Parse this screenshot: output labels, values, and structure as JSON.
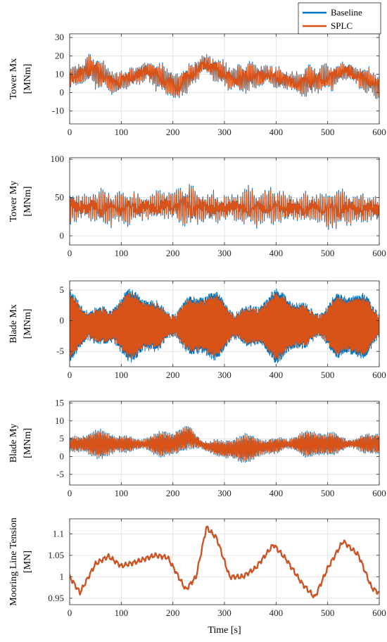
{
  "chart_data": [
    {
      "type": "line",
      "ylabel_lines": [
        "Tower Mx",
        "[MNm]"
      ],
      "xlabel": "",
      "xlim": [
        0,
        600
      ],
      "ylim": [
        -17,
        32
      ],
      "yticks": [
        -10,
        0,
        10,
        20,
        30
      ],
      "ytick_labels": [
        "-10",
        "0",
        "10",
        "20",
        "30"
      ],
      "xticks": [
        0,
        100,
        200,
        300,
        400,
        500,
        600
      ],
      "xtick_labels": [
        "0",
        "100",
        "200",
        "300",
        "400",
        "500",
        "600"
      ],
      "grid": true,
      "legend": {
        "placement": "top-right",
        "entries": [
          "Baseline",
          "SPLC"
        ]
      },
      "signal": {
        "kind": "oscillating",
        "amp": 7,
        "freq": 0.35,
        "seed": 3,
        "trend": [
          [
            0,
            8
          ],
          [
            40,
            13
          ],
          [
            90,
            5
          ],
          [
            150,
            12
          ],
          [
            210,
            3
          ],
          [
            260,
            16
          ],
          [
            320,
            7
          ],
          [
            380,
            10
          ],
          [
            440,
            5
          ],
          [
            500,
            8
          ],
          [
            540,
            12
          ],
          [
            600,
            3
          ]
        ]
      },
      "series": [
        {
          "name": "Baseline",
          "color": "#0072BD",
          "scale": 1.12
        },
        {
          "name": "SPLC",
          "color": "#D95319",
          "scale": 1.0
        }
      ]
    },
    {
      "type": "line",
      "ylabel_lines": [
        "Tower My",
        "[MNm]"
      ],
      "xlabel": "",
      "xlim": [
        0,
        600
      ],
      "ylim": [
        -12,
        102
      ],
      "yticks": [
        0,
        50,
        100
      ],
      "ytick_labels": [
        "0",
        "50",
        "100"
      ],
      "xticks": [
        0,
        100,
        200,
        300,
        400,
        500,
        600
      ],
      "xtick_labels": [
        "0",
        "100",
        "200",
        "300",
        "400",
        "500",
        "600"
      ],
      "grid": true,
      "signal": {
        "kind": "oscillating",
        "amp": 22,
        "freq": 0.28,
        "seed": 7,
        "trend": [
          [
            0,
            38
          ],
          [
            100,
            36
          ],
          [
            200,
            40
          ],
          [
            300,
            36
          ],
          [
            400,
            38
          ],
          [
            500,
            35
          ],
          [
            600,
            36
          ]
        ]
      },
      "series": [
        {
          "name": "Baseline",
          "color": "#0072BD",
          "scale": 1.12
        },
        {
          "name": "SPLC",
          "color": "#D95319",
          "scale": 1.0
        }
      ]
    },
    {
      "type": "line",
      "ylabel_lines": [
        "Blade Mx",
        "[MNm]"
      ],
      "xlabel": "",
      "xlim": [
        0,
        600
      ],
      "ylim": [
        -7.5,
        6.5
      ],
      "yticks": [
        -5,
        0,
        5
      ],
      "ytick_labels": [
        "-5",
        "0",
        "5"
      ],
      "xticks": [
        0,
        100,
        200,
        300,
        400,
        500,
        600
      ],
      "xtick_labels": [
        "0",
        "100",
        "200",
        "300",
        "400",
        "500",
        "600"
      ],
      "grid": true,
      "signal": {
        "kind": "dense",
        "amp": 4.3,
        "freq": 1.25,
        "seed": 11,
        "trend": [
          [
            0,
            -0.8
          ],
          [
            300,
            -0.8
          ],
          [
            600,
            -0.8
          ]
        ]
      },
      "series": [
        {
          "name": "Baseline",
          "color": "#0072BD",
          "scale": 1.12
        },
        {
          "name": "SPLC",
          "color": "#D95319",
          "scale": 1.0
        }
      ]
    },
    {
      "type": "line",
      "ylabel_lines": [
        "Blade My",
        "[MNm]"
      ],
      "xlabel": "",
      "xlim": [
        0,
        600
      ],
      "ylim": [
        -8,
        15.5
      ],
      "yticks": [
        -5,
        0,
        5,
        10,
        15
      ],
      "ytick_labels": [
        "-5",
        "0",
        "5",
        "10",
        "15"
      ],
      "xticks": [
        0,
        100,
        200,
        300,
        400,
        500,
        600
      ],
      "xtick_labels": [
        "0",
        "100",
        "200",
        "300",
        "400",
        "500",
        "600"
      ],
      "grid": true,
      "signal": {
        "kind": "dense",
        "amp": 3.0,
        "freq": 1.1,
        "seed": 19,
        "trend": [
          [
            0,
            3.5
          ],
          [
            200,
            3.5
          ],
          [
            230,
            5.5
          ],
          [
            260,
            3
          ],
          [
            300,
            2
          ],
          [
            370,
            2.5
          ],
          [
            420,
            3.5
          ],
          [
            600,
            3.5
          ]
        ]
      },
      "series": [
        {
          "name": "Baseline",
          "color": "#0072BD",
          "scale": 1.12
        },
        {
          "name": "SPLC",
          "color": "#D95319",
          "scale": 1.0
        }
      ]
    },
    {
      "type": "line",
      "ylabel_lines": [
        "Mooring Line Tension",
        "[MN]"
      ],
      "xlabel": "Time [s]",
      "xlim": [
        0,
        600
      ],
      "ylim": [
        0.935,
        1.135
      ],
      "yticks": [
        0.95,
        1,
        1.05,
        1.1
      ],
      "ytick_labels": [
        "0.95",
        "1",
        "1.05",
        "1.1"
      ],
      "xticks": [
        0,
        100,
        200,
        300,
        400,
        500,
        600
      ],
      "xtick_labels": [
        "0",
        "100",
        "200",
        "300",
        "400",
        "500",
        "600"
      ],
      "grid": true,
      "signal": {
        "kind": "smooth",
        "amp": 0.006,
        "freq": 0.12,
        "seed": 23,
        "trend": [
          [
            0,
            1.0
          ],
          [
            20,
            0.963
          ],
          [
            50,
            1.03
          ],
          [
            75,
            1.048
          ],
          [
            100,
            1.025
          ],
          [
            130,
            1.035
          ],
          [
            165,
            1.05
          ],
          [
            190,
            1.045
          ],
          [
            225,
            0.97
          ],
          [
            245,
            1.0
          ],
          [
            265,
            1.115
          ],
          [
            285,
            1.09
          ],
          [
            310,
            1.0
          ],
          [
            335,
            1.0
          ],
          [
            360,
            1.02
          ],
          [
            395,
            1.075
          ],
          [
            420,
            1.04
          ],
          [
            450,
            0.985
          ],
          [
            475,
            0.952
          ],
          [
            500,
            1.02
          ],
          [
            530,
            1.083
          ],
          [
            560,
            1.05
          ],
          [
            585,
            0.975
          ],
          [
            600,
            0.962
          ]
        ]
      },
      "series": [
        {
          "name": "Baseline",
          "color": "#0072BD",
          "scale": 1.05
        },
        {
          "name": "SPLC",
          "color": "#D95319",
          "scale": 1.0
        }
      ]
    }
  ]
}
